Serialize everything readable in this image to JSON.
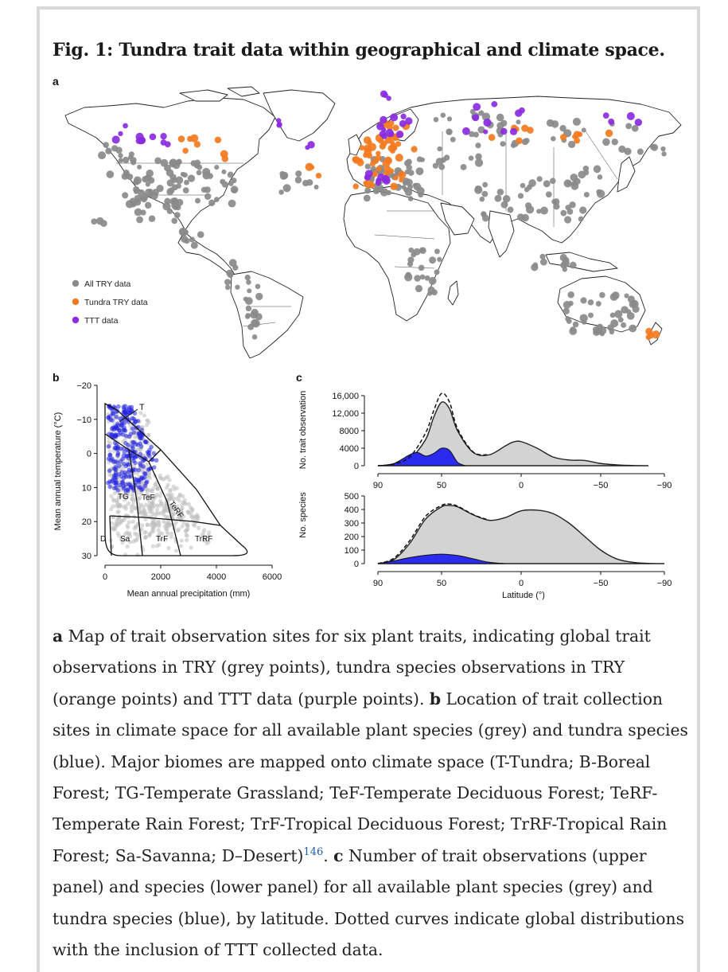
{
  "figure": {
    "title": "Fig. 1: Tundra trait data within geographical and climate space.",
    "panel_a": "a",
    "panel_b": "b",
    "panel_c": "c"
  },
  "map": {
    "legend": [
      {
        "label": "All TRY data",
        "color": "#8a8a8a"
      },
      {
        "label": "Tundra TRY data",
        "color": "#f47a20"
      },
      {
        "label": "TTT data",
        "color": "#8a2be2"
      }
    ]
  },
  "chart_data": [
    {
      "type": "scatter",
      "xlabel": "Mean annual precipitation (mm)",
      "ylabel": "Mean annual temperature (°C)",
      "xticks": [
        "0",
        "2000",
        "4000",
        "6000"
      ],
      "yticks": [
        "−20",
        "−10",
        "0",
        "10",
        "20",
        "30"
      ],
      "xlim": [
        0,
        6000
      ],
      "ylim": [
        -20,
        30
      ],
      "series": [
        {
          "name": "All plant species",
          "color": "#bdbdbd"
        },
        {
          "name": "Tundra species",
          "color": "#2020e0"
        }
      ],
      "biomes": [
        "T",
        "TG",
        "TeF",
        "TeRF",
        "D",
        "Sa",
        "TrF",
        "TrRF"
      ]
    },
    {
      "type": "area",
      "ylabel": "No. trait observation",
      "xticks": [
        "90",
        "50",
        "0",
        "−50",
        "−90"
      ],
      "yticks": [
        "0",
        "4000",
        "8000",
        "12,000",
        "16,000"
      ],
      "xlim": [
        90,
        -90
      ],
      "ylim": [
        0,
        16000
      ],
      "series": [
        {
          "name": "All species",
          "x": [
            90,
            80,
            70,
            60,
            55,
            50,
            45,
            40,
            30,
            20,
            10,
            5,
            0,
            -10,
            -20,
            -30,
            -40,
            -50,
            -60,
            -70,
            -80
          ],
          "values": [
            0,
            300,
            1500,
            6000,
            11000,
            14500,
            13000,
            8000,
            3000,
            2500,
            4500,
            5400,
            5500,
            4000,
            2000,
            1300,
            1200,
            500,
            200,
            50,
            0
          ]
        },
        {
          "name": "Tundra species",
          "x": [
            90,
            80,
            70,
            65,
            60,
            55,
            50,
            45,
            40,
            35
          ],
          "values": [
            0,
            500,
            2500,
            3000,
            2200,
            2800,
            4000,
            3500,
            800,
            0
          ]
        },
        {
          "name": "Global incl. TTT",
          "x": [
            90,
            80,
            70,
            60,
            55,
            50,
            45,
            40,
            30,
            20
          ],
          "values": [
            0,
            400,
            2000,
            7500,
            12500,
            16500,
            14500,
            8500,
            3100,
            2500
          ]
        }
      ]
    },
    {
      "type": "area",
      "ylabel": "No. species",
      "xlabel": "Latitude (°)",
      "xticks": [
        "90",
        "50",
        "0",
        "−50",
        "−90"
      ],
      "yticks": [
        "0",
        "100",
        "200",
        "300",
        "400",
        "500"
      ],
      "xlim": [
        90,
        -90
      ],
      "ylim": [
        0,
        500
      ],
      "series": [
        {
          "name": "All species",
          "x": [
            90,
            80,
            70,
            60,
            50,
            45,
            40,
            30,
            20,
            10,
            0,
            -10,
            -20,
            -30,
            -40,
            -50,
            -60,
            -70,
            -80,
            -90
          ],
          "values": [
            0,
            30,
            150,
            330,
            420,
            430,
            420,
            360,
            320,
            340,
            390,
            395,
            370,
            300,
            200,
            100,
            35,
            10,
            2,
            0
          ]
        },
        {
          "name": "Tundra species",
          "x": [
            90,
            80,
            70,
            60,
            50,
            40,
            30,
            20,
            10
          ],
          "values": [
            0,
            20,
            45,
            62,
            70,
            60,
            35,
            10,
            0
          ]
        },
        {
          "name": "Global incl. TTT",
          "x": [
            90,
            80,
            70,
            60,
            50,
            45,
            40,
            30,
            20
          ],
          "values": [
            0,
            40,
            170,
            350,
            430,
            440,
            425,
            362,
            320
          ]
        }
      ]
    }
  ],
  "caption": {
    "a_label": "a",
    "a_text": " Map of trait observation sites for six plant traits, indicating global trait observations in TRY (grey points), tundra species observations in TRY (orange points) and TTT data (purple points). ",
    "b_label": "b",
    "b_text": " Location of trait collection sites in climate space for all available plant species (grey) and tundra species (blue). Major biomes are mapped onto climate space (T-Tundra; B-Boreal Forest; TG-Temperate Grassland; TeF-Temperate Deciduous Forest; TeRF-Temperate Rain Forest; TrF-Tropical Deciduous Forest; TrRF-Tropical Rain Forest; Sa-Savanna; D–Desert)",
    "ref": "146",
    "after_ref": ". ",
    "c_label": "c",
    "c_text": " Number of trait observations (upper panel) and species (lower panel) for all available plant species (grey) and tundra species (blue), by latitude. Dotted curves indicate global distributions with the inclusion of TTT collected data."
  }
}
